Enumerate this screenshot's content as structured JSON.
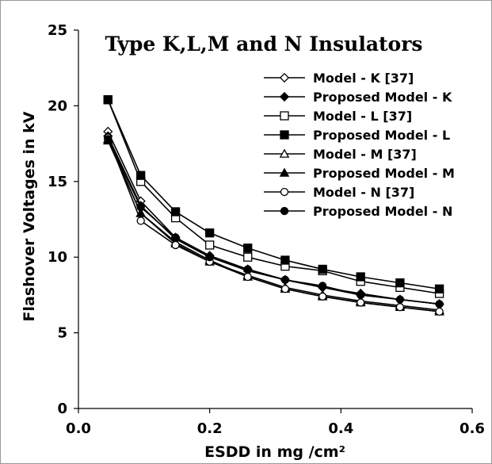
{
  "chart_data": {
    "type": "line",
    "title": "Type K,L,M and N Insulators",
    "xlabel": "ESDD in mg /cm²",
    "ylabel": "Flashover Voltages in kV",
    "xlim": [
      0.0,
      0.6
    ],
    "ylim": [
      0,
      25
    ],
    "x_ticks": [
      "0.0",
      "0.2",
      "0.4",
      "0.6"
    ],
    "y_ticks": [
      "0",
      "5",
      "10",
      "15",
      "20",
      "25"
    ],
    "grid": false,
    "legend_position": "top-right",
    "x": [
      0.045,
      0.095,
      0.148,
      0.2,
      0.258,
      0.315,
      0.372,
      0.43,
      0.49,
      0.55
    ],
    "series": [
      {
        "name": "Model - K [37]",
        "marker": "diamond-open",
        "values": [
          18.3,
          13.7,
          11.3,
          10.1,
          9.2,
          8.5,
          8.0,
          7.5,
          7.2,
          6.9
        ]
      },
      {
        "name": "Proposed Model - K",
        "marker": "diamond-filled",
        "values": [
          18.0,
          13.4,
          11.2,
          10.0,
          9.1,
          8.5,
          8.0,
          7.6,
          7.2,
          6.9
        ]
      },
      {
        "name": "Model - L [37]",
        "marker": "square-open",
        "values": [
          20.4,
          15.0,
          12.6,
          10.8,
          10.0,
          9.4,
          9.1,
          8.4,
          8.0,
          7.6
        ]
      },
      {
        "name": "Proposed Model - L",
        "marker": "square-filled",
        "values": [
          20.4,
          15.4,
          13.0,
          11.6,
          10.6,
          9.8,
          9.2,
          8.7,
          8.3,
          7.9
        ]
      },
      {
        "name": "Model - M  [37]",
        "marker": "triangle-open",
        "values": [
          17.8,
          12.9,
          10.9,
          9.7,
          8.8,
          8.0,
          7.5,
          7.1,
          6.8,
          6.5
        ]
      },
      {
        "name": "Proposed Model - M",
        "marker": "triangle-filled",
        "values": [
          17.7,
          12.9,
          11.0,
          9.8,
          8.7,
          7.9,
          7.4,
          7.0,
          6.7,
          6.4
        ]
      },
      {
        "name": "Model - N [37]",
        "marker": "circle-open",
        "values": [
          17.9,
          12.4,
          10.8,
          9.7,
          8.7,
          7.9,
          7.4,
          7.0,
          6.7,
          6.4
        ]
      },
      {
        "name": "Proposed Model - N",
        "marker": "circle-filled",
        "values": [
          17.8,
          13.3,
          11.3,
          10.0,
          9.2,
          8.5,
          8.1,
          7.5,
          7.2,
          6.9
        ]
      }
    ]
  }
}
